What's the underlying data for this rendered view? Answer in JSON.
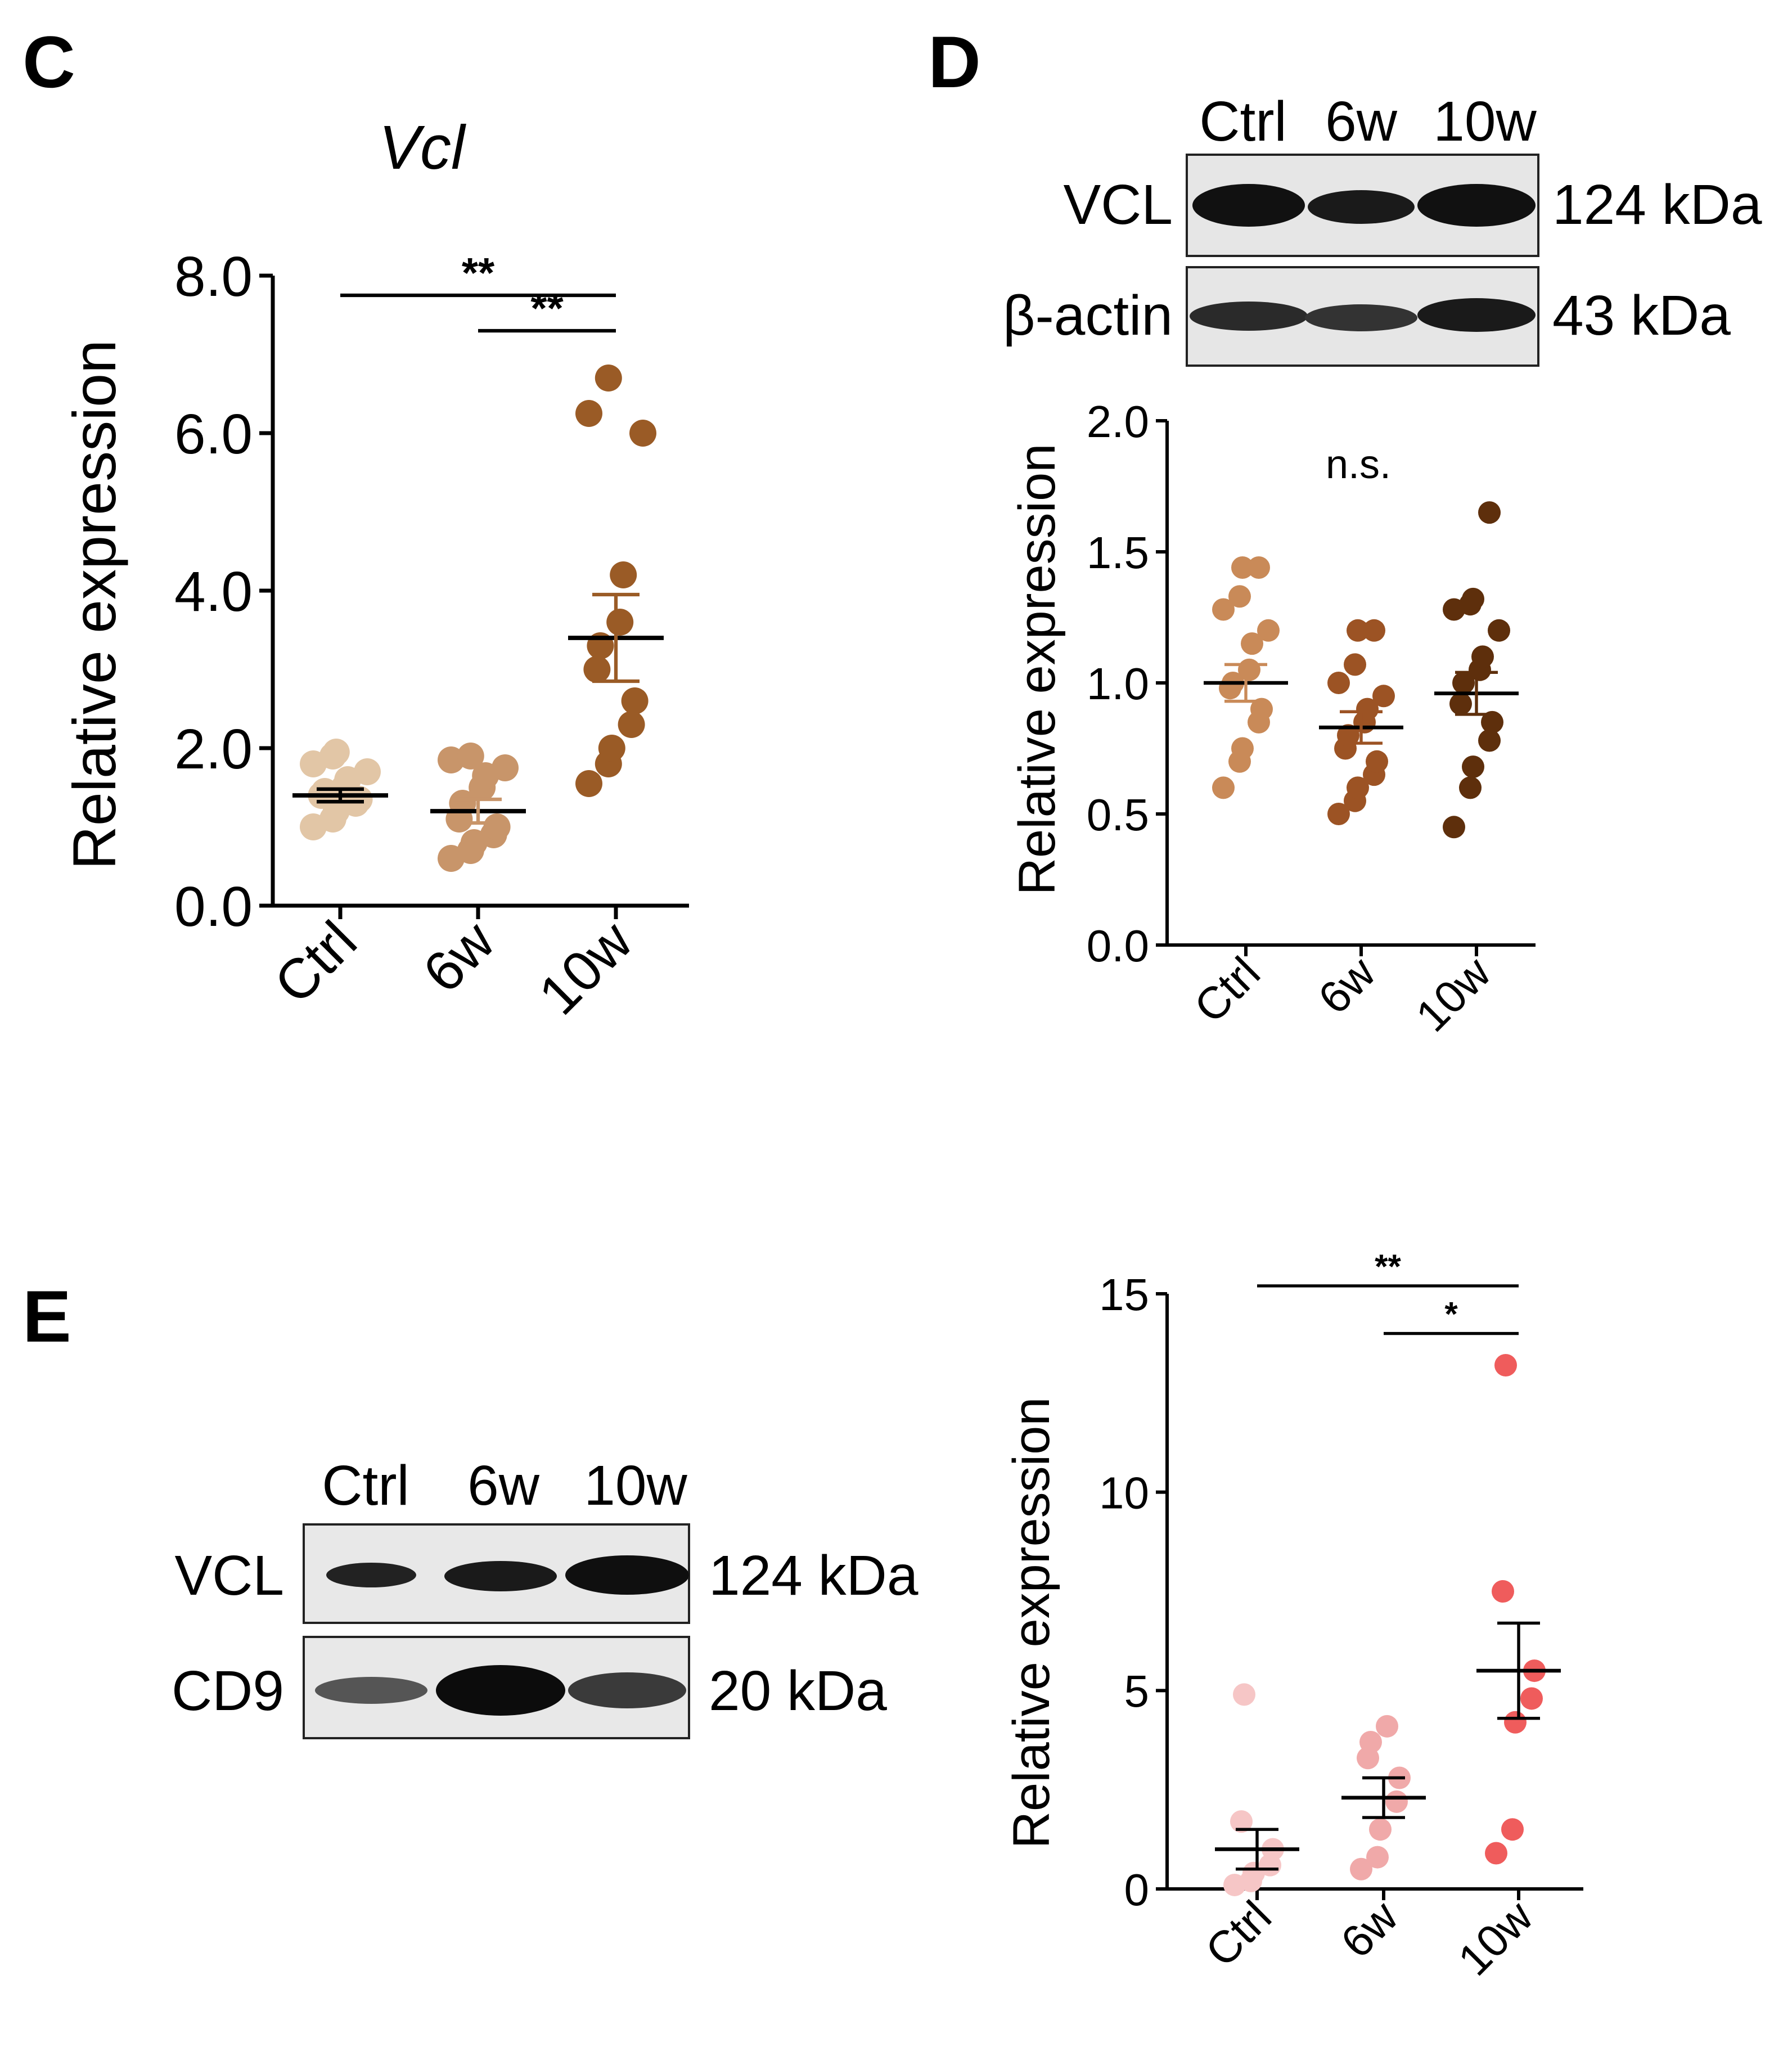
{
  "figure": {
    "panel_letters": {
      "C": "C",
      "D": "D",
      "E": "E"
    },
    "colors": {
      "axis": "#000000",
      "ctrl_brown": "#e2c6a6",
      "w6_brown": "#c8956a",
      "w10_brown": "#9a5b26",
      "d_ctrl": "#c98a58",
      "d_6w": "#9c5324",
      "d_10w": "#5e2f0c",
      "e_ctrl": "#f6c6c6",
      "e_6w": "#f0a9a9",
      "e_10w": "#ef5c5c",
      "blot_bg": "#e8e8e8"
    },
    "blot_D": {
      "lanes": [
        "Ctrl",
        "6w",
        "10w"
      ],
      "rows": [
        {
          "label": "VCL",
          "size": "124 kDa"
        },
        {
          "label": "β-actin",
          "size": "43 kDa"
        }
      ]
    },
    "blot_E": {
      "lanes": [
        "Ctrl",
        "6w",
        "10w"
      ],
      "rows": [
        {
          "label": "VCL",
          "size": "124 kDa"
        },
        {
          "label": "CD9",
          "size": "20 kDa"
        }
      ]
    }
  },
  "chart_data": [
    {
      "id": "C",
      "type": "scatter",
      "title": "Vcl",
      "ylabel": "Relative expression",
      "xlabel": "",
      "categories": [
        "Ctrl",
        "6w",
        "10w"
      ],
      "ylim": [
        0,
        8
      ],
      "yticks": [
        0,
        2,
        4,
        6,
        8
      ],
      "ytick_labels": [
        "0.0",
        "2.0",
        "4.0",
        "6.0",
        "8.0"
      ],
      "series": [
        {
          "name": "Ctrl",
          "values": [
            1.0,
            1.1,
            1.2,
            1.3,
            1.35,
            1.4,
            1.45,
            1.5,
            1.6,
            1.7,
            1.8,
            1.9,
            1.95
          ],
          "mean": 1.4,
          "sem": 0.08
        },
        {
          "name": "6w",
          "values": [
            0.6,
            0.7,
            0.8,
            0.9,
            1.0,
            1.1,
            1.3,
            1.5,
            1.65,
            1.75,
            1.85,
            1.9
          ],
          "mean": 1.2,
          "sem": 0.15
        },
        {
          "name": "10w",
          "values": [
            1.55,
            1.8,
            2.0,
            2.3,
            2.6,
            3.0,
            3.3,
            3.6,
            4.2,
            6.0,
            6.25,
            6.7
          ],
          "mean": 3.4,
          "sem": 0.55
        }
      ],
      "significance": [
        {
          "from": "Ctrl",
          "to": "10w",
          "label": "**",
          "y": 7.75
        },
        {
          "from": "6w",
          "to": "10w",
          "label": "**",
          "y": 7.3
        }
      ]
    },
    {
      "id": "D",
      "type": "scatter",
      "title": "",
      "ylabel": "Relative expression",
      "xlabel": "",
      "categories": [
        "Ctrl",
        "6w",
        "10w"
      ],
      "ylim": [
        0,
        2.0
      ],
      "yticks": [
        0,
        0.5,
        1.0,
        1.5,
        2.0
      ],
      "ytick_labels": [
        "0.0",
        "0.5",
        "1.0",
        "1.5",
        "2.0"
      ],
      "series": [
        {
          "name": "Ctrl",
          "values": [
            0.6,
            0.7,
            0.75,
            0.85,
            0.9,
            0.98,
            1.0,
            1.05,
            1.15,
            1.2,
            1.28,
            1.33,
            1.44,
            1.44
          ],
          "mean": 1.0,
          "sem": 0.07
        },
        {
          "name": "6w",
          "values": [
            0.5,
            0.55,
            0.6,
            0.65,
            0.7,
            0.75,
            0.8,
            0.85,
            0.9,
            0.95,
            1.0,
            1.07,
            1.2,
            1.2
          ],
          "mean": 0.83,
          "sem": 0.06
        },
        {
          "name": "10w",
          "values": [
            0.45,
            0.6,
            0.68,
            0.78,
            0.85,
            0.92,
            1.0,
            1.05,
            1.1,
            1.2,
            1.28,
            1.3,
            1.32,
            1.65
          ],
          "mean": 0.96,
          "sem": 0.08
        }
      ],
      "annotation": "n.s.",
      "annotation_y": 1.8
    },
    {
      "id": "E",
      "type": "scatter",
      "title": "",
      "ylabel": "Relative expression",
      "xlabel": "",
      "categories": [
        "Ctrl",
        "6w",
        "10w"
      ],
      "ylim": [
        0,
        15
      ],
      "yticks": [
        0,
        5,
        10,
        15
      ],
      "ytick_labels": [
        "0",
        "5",
        "10",
        "15"
      ],
      "series": [
        {
          "name": "Ctrl",
          "values": [
            0.1,
            0.2,
            0.4,
            0.6,
            1.0,
            1.7,
            4.9
          ],
          "mean": 1.0,
          "sem": 0.5
        },
        {
          "name": "6w",
          "values": [
            0.5,
            0.8,
            1.5,
            2.2,
            2.8,
            3.3,
            3.7,
            4.1
          ],
          "mean": 2.3,
          "sem": 0.5
        },
        {
          "name": "10w",
          "values": [
            0.9,
            1.5,
            4.2,
            4.8,
            5.5,
            7.5,
            13.2
          ],
          "mean": 5.5,
          "sem": 1.2
        }
      ],
      "significance": [
        {
          "from": "Ctrl",
          "to": "10w",
          "label": "**",
          "y": 15.2
        },
        {
          "from": "6w",
          "to": "10w",
          "label": "*",
          "y": 14.0
        }
      ]
    }
  ]
}
